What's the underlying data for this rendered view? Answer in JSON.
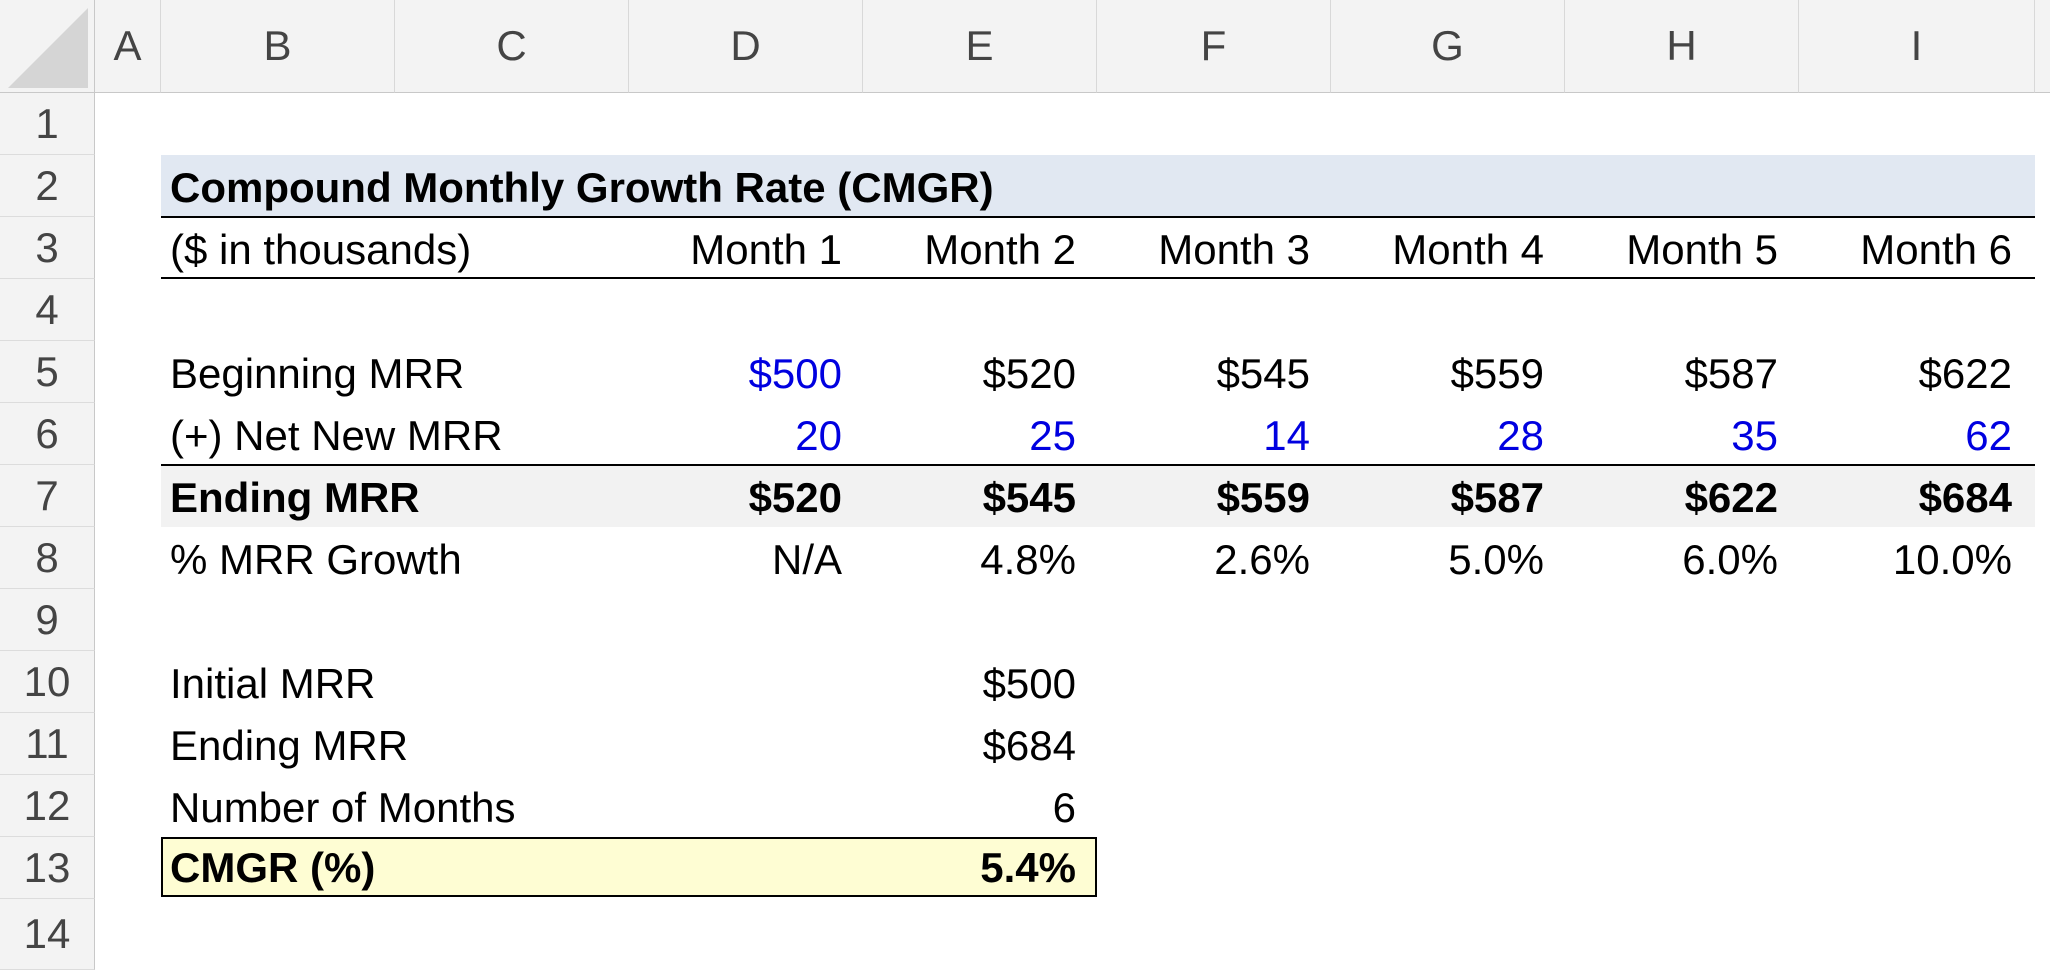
{
  "columns": [
    "A",
    "B",
    "C",
    "D",
    "E",
    "F",
    "G",
    "H",
    "I"
  ],
  "rows": [
    "1",
    "2",
    "3",
    "4",
    "5",
    "6",
    "7",
    "8",
    "9",
    "10",
    "11",
    "12",
    "13",
    "14"
  ],
  "title": "Compound Monthly Growth Rate (CMGR)",
  "units_label": "($ in thousands)",
  "months": [
    "Month 1",
    "Month 2",
    "Month 3",
    "Month 4",
    "Month 5",
    "Month 6"
  ],
  "beginning_mrr": {
    "label": "Beginning MRR",
    "values": [
      "$500",
      "$520",
      "$545",
      "$559",
      "$587",
      "$622"
    ]
  },
  "net_new_mrr": {
    "label": "(+) Net New MRR",
    "values": [
      "20",
      "25",
      "14",
      "28",
      "35",
      "62"
    ]
  },
  "ending_mrr": {
    "label": "Ending MRR",
    "values": [
      "$520",
      "$545",
      "$559",
      "$587",
      "$622",
      "$684"
    ]
  },
  "mrr_growth": {
    "label": "% MRR Growth",
    "values": [
      "N/A",
      "4.8%",
      "2.6%",
      "5.0%",
      "6.0%",
      "10.0%"
    ]
  },
  "summary": {
    "initial_label": "Initial MRR",
    "initial_value": "$500",
    "ending_label": "Ending MRR",
    "ending_value": "$684",
    "months_label": "Number of Months",
    "months_value": "6",
    "cmgr_label": "CMGR (%)",
    "cmgr_value": "5.4%"
  },
  "colors": {
    "title_band": "#e1e8f2",
    "ending_band": "#f2f2f2",
    "cmgr_fill": "#fefdd3",
    "input_blue": "#0000e0"
  }
}
